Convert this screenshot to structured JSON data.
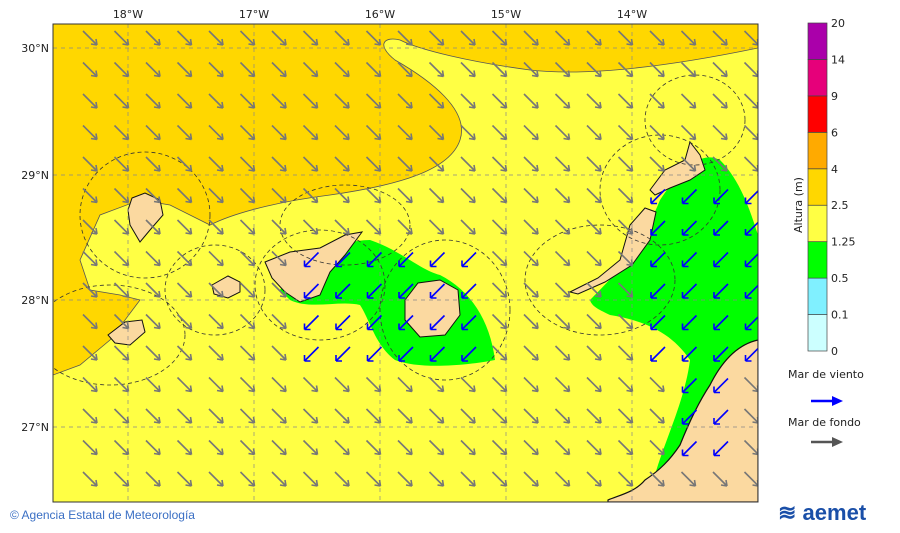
{
  "map": {
    "lon_ticks": [
      "18°W",
      "17°W",
      "16°W",
      "15°W",
      "14°W"
    ],
    "lat_ticks": [
      "30°N",
      "29°N",
      "28°N",
      "27°N"
    ],
    "sea_color": "#ffff44",
    "land_color": "#fbd9a0"
  },
  "legend": {
    "title": "Altura (m)",
    "levels": [
      "0",
      "0.1",
      "0.5",
      "1.25",
      "2.5",
      "4",
      "6",
      "9",
      "14",
      "20"
    ],
    "colors": [
      "#ccffff",
      "#80f0ff",
      "#00ff00",
      "#ffff44",
      "#ffd700",
      "#ffaa00",
      "#ff0000",
      "#e6007a",
      "#aa00aa"
    ],
    "wind_sea_label": "Mar de viento",
    "wind_sea_color": "#0000ff",
    "swell_label": "Mar de fondo",
    "swell_color": "#555555"
  },
  "footer": {
    "attribution": "© Agencia Estatal de Meteorología",
    "logo": "aemet"
  }
}
